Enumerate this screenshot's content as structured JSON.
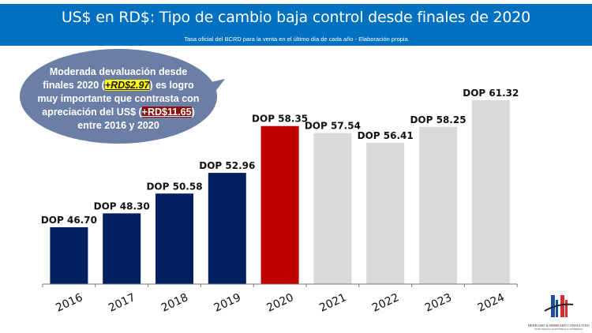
{
  "header": {
    "title": "US$ en RD$: Tipo de cambio baja control desde finales de 2020",
    "subtitle": "Tasa oficial del BCRD para la venta en el último día de cada año -  Elaboración propia"
  },
  "callout": {
    "line1": "Moderada devaluación desde",
    "line2_pre": "finales 2020 (",
    "highlight1": "+RD$2.97",
    "line2_post": ") es logro",
    "line3": "muy importante que contrasta con",
    "line4_pre": "apreciación del US$ (",
    "highlight2": "+RD$11.65",
    "line4_post": ")",
    "line5": "entre 2016 y 2020"
  },
  "logo": {
    "name": "HEBRARD & HEBRARD CONSULTING",
    "tagline": "INTELIGENCIA ECONÓMICA & COMERCIAL"
  },
  "colors": {
    "navy": "#002060",
    "red": "#c00000",
    "gray": "#d9d9d9",
    "header": "#0070c0",
    "bubble": "#6a7ea6"
  },
  "chart_data": {
    "type": "bar",
    "title": "US$ en RD$: Tipo de cambio baja control desde finales de 2020",
    "categories": [
      "2016",
      "2017",
      "2018",
      "2019",
      "2020",
      "2021",
      "2022",
      "2023",
      "2024"
    ],
    "values": [
      46.7,
      48.3,
      50.58,
      52.96,
      58.35,
      57.54,
      56.41,
      58.25,
      61.32
    ],
    "labels": [
      "DOP 46.70",
      "DOP 48.30",
      "DOP 50.58",
      "DOP 52.96",
      "DOP 58.35",
      "DOP 57.54",
      "DOP 56.41",
      "DOP 58.25",
      "DOP 61.32"
    ],
    "bar_colors": [
      "#002060",
      "#002060",
      "#002060",
      "#002060",
      "#c00000",
      "#d9d9d9",
      "#d9d9d9",
      "#d9d9d9",
      "#d9d9d9"
    ],
    "xlabel": "",
    "ylabel": "",
    "ylim": [
      40.16,
      62
    ],
    "grid": false
  }
}
